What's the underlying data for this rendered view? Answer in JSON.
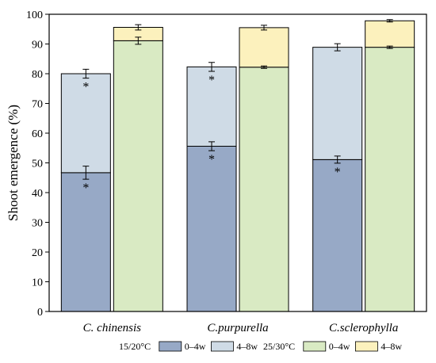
{
  "chart_data": {
    "type": "bar",
    "stacked": true,
    "title": "",
    "xlabel": "",
    "ylabel": "Shoot emergence (%)",
    "ylim": [
      0,
      100
    ],
    "yticks": [
      0,
      10,
      20,
      30,
      40,
      50,
      60,
      70,
      80,
      90,
      100
    ],
    "grid": false,
    "legend_position": "bottom",
    "categories": [
      "C. chinensis",
      "C.purpurella",
      "C.sclerophylla"
    ],
    "groups": [
      {
        "name": "15/20°C",
        "colors": [
          "#97a9c6",
          "#cfdbe6"
        ],
        "segments": [
          {
            "name": "0–4w",
            "values": [
              46.7,
              55.6,
              51.1
            ],
            "errors": [
              2.2,
              1.5,
              1.2
            ],
            "significant": [
              true,
              true,
              true
            ]
          },
          {
            "name": "4–8w",
            "values": [
              33.3,
              26.7,
              37.8
            ],
            "errors": [
              1.5,
              1.5,
              1.2
            ],
            "significant": [
              true,
              true,
              false
            ]
          }
        ]
      },
      {
        "name": "25/30°C",
        "colors": [
          "#d9eac3",
          "#fcf1bd"
        ],
        "segments": [
          {
            "name": "0–4w",
            "values": [
              91.1,
              82.2,
              88.9
            ],
            "errors": [
              1.2,
              0.4,
              0.4
            ],
            "significant": [
              false,
              false,
              false
            ]
          },
          {
            "name": "4–8w",
            "values": [
              4.5,
              13.3,
              8.9
            ],
            "errors": [
              0.9,
              0.8,
              0.4
            ],
            "significant": [
              false,
              false,
              false
            ]
          }
        ]
      }
    ],
    "significance_marker": "*"
  }
}
